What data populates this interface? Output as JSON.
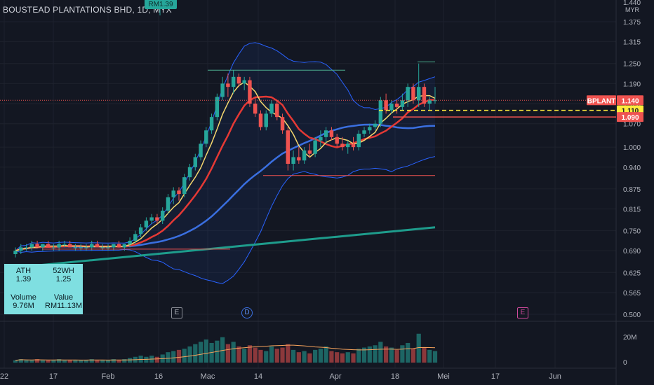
{
  "title": "BOUSTEAD PLANTATIONS BHD, 1D, MYX",
  "ath_tag": "RM1.39",
  "currency": "MYR",
  "price_axis": {
    "top_label": "1.440",
    "ticks": [
      "1.375",
      "1.315",
      "1.250",
      "1.190",
      "1.130",
      "1.070",
      "1.000",
      "0.940",
      "0.875",
      "0.815",
      "0.750",
      "0.690",
      "0.625",
      "0.565",
      "0.500"
    ],
    "tick_values": [
      1.375,
      1.315,
      1.25,
      1.19,
      1.13,
      1.07,
      1.0,
      0.94,
      0.875,
      0.815,
      0.75,
      0.69,
      0.625,
      0.565,
      0.5
    ]
  },
  "price_tags": {
    "symbol": "BPLANT",
    "last": "1.140",
    "mid": "1.110",
    "low": "1.090"
  },
  "volume_axis": {
    "ticks": [
      "20M",
      "0"
    ]
  },
  "time_axis": [
    "22",
    "17",
    "Feb",
    "16",
    "Mac",
    "14",
    "Apr",
    "18",
    "Mei",
    "17",
    "Jun"
  ],
  "events": [
    {
      "label": "E",
      "type": "earnings"
    },
    {
      "label": "D",
      "type": "dividend"
    },
    {
      "label": "E",
      "type": "earnings-upcoming"
    }
  ],
  "info": {
    "ath_label": "ATH",
    "ath_value": "1.39",
    "wh_label": "52WH",
    "wh_value": "1.25",
    "volume_label": "Volume",
    "volume_value": "9.76M",
    "value_label": "Value",
    "value_value": "RM11.13M"
  },
  "colors": {
    "up": "#26a69a",
    "down": "#ef5350",
    "bg": "#131722",
    "info": "#7fdfe1"
  },
  "chart_data": {
    "type": "candlestick",
    "title": "BOUSTEAD PLANTATIONS BHD, 1D, MYX",
    "y_axis": {
      "unit": "MYR",
      "range": [
        0.5,
        1.44
      ]
    },
    "ohlc": [
      [
        0.68,
        0.7,
        0.67,
        0.69
      ],
      [
        0.69,
        0.71,
        0.68,
        0.7
      ],
      [
        0.7,
        0.71,
        0.69,
        0.7
      ],
      [
        0.7,
        0.72,
        0.69,
        0.71
      ],
      [
        0.71,
        0.72,
        0.7,
        0.7
      ],
      [
        0.7,
        0.71,
        0.69,
        0.71
      ],
      [
        0.71,
        0.72,
        0.7,
        0.7
      ],
      [
        0.7,
        0.71,
        0.69,
        0.7
      ],
      [
        0.7,
        0.72,
        0.69,
        0.71
      ],
      [
        0.71,
        0.72,
        0.7,
        0.71
      ],
      [
        0.71,
        0.72,
        0.7,
        0.7
      ],
      [
        0.7,
        0.71,
        0.69,
        0.7
      ],
      [
        0.7,
        0.71,
        0.69,
        0.7
      ],
      [
        0.7,
        0.71,
        0.69,
        0.7
      ],
      [
        0.7,
        0.72,
        0.69,
        0.71
      ],
      [
        0.71,
        0.72,
        0.7,
        0.7
      ],
      [
        0.7,
        0.71,
        0.69,
        0.7
      ],
      [
        0.7,
        0.71,
        0.69,
        0.7
      ],
      [
        0.7,
        0.71,
        0.69,
        0.71
      ],
      [
        0.71,
        0.72,
        0.7,
        0.7
      ],
      [
        0.7,
        0.71,
        0.69,
        0.71
      ],
      [
        0.71,
        0.73,
        0.7,
        0.72
      ],
      [
        0.72,
        0.75,
        0.71,
        0.74
      ],
      [
        0.74,
        0.77,
        0.73,
        0.76
      ],
      [
        0.76,
        0.79,
        0.75,
        0.78
      ],
      [
        0.78,
        0.8,
        0.77,
        0.79
      ],
      [
        0.79,
        0.8,
        0.77,
        0.78
      ],
      [
        0.78,
        0.82,
        0.77,
        0.81
      ],
      [
        0.81,
        0.86,
        0.8,
        0.85
      ],
      [
        0.85,
        0.88,
        0.83,
        0.87
      ],
      [
        0.87,
        0.88,
        0.84,
        0.86
      ],
      [
        0.86,
        0.92,
        0.85,
        0.91
      ],
      [
        0.91,
        0.95,
        0.9,
        0.94
      ],
      [
        0.94,
        0.98,
        0.93,
        0.97
      ],
      [
        0.97,
        1.02,
        0.96,
        1.01
      ],
      [
        1.01,
        1.06,
        1.0,
        1.05
      ],
      [
        1.05,
        1.1,
        1.04,
        1.09
      ],
      [
        1.09,
        1.16,
        1.08,
        1.15
      ],
      [
        1.15,
        1.21,
        1.14,
        1.19
      ],
      [
        1.19,
        1.22,
        1.15,
        1.18
      ],
      [
        1.18,
        1.23,
        1.16,
        1.21
      ],
      [
        1.21,
        1.22,
        1.18,
        1.19
      ],
      [
        1.19,
        1.21,
        1.17,
        1.2
      ],
      [
        1.2,
        1.21,
        1.12,
        1.13
      ],
      [
        1.13,
        1.15,
        1.09,
        1.1
      ],
      [
        1.1,
        1.11,
        1.05,
        1.06
      ],
      [
        1.06,
        1.11,
        1.05,
        1.1
      ],
      [
        1.1,
        1.14,
        1.09,
        1.13
      ],
      [
        1.13,
        1.14,
        1.08,
        1.09
      ],
      [
        1.09,
        1.1,
        1.04,
        1.05
      ],
      [
        1.05,
        1.06,
        0.93,
        0.95
      ],
      [
        0.95,
        0.99,
        0.93,
        0.97
      ],
      [
        0.97,
        1.0,
        0.95,
        0.96
      ],
      [
        0.96,
        1.0,
        0.95,
        0.99
      ],
      [
        0.99,
        1.01,
        0.97,
        0.98
      ],
      [
        0.98,
        1.03,
        0.97,
        1.02
      ],
      [
        1.02,
        1.05,
        1.0,
        1.03
      ],
      [
        1.03,
        1.06,
        1.01,
        1.05
      ],
      [
        1.05,
        1.06,
        1.02,
        1.03
      ],
      [
        1.03,
        1.04,
        1.0,
        1.01
      ],
      [
        1.01,
        1.03,
        0.99,
        1.0
      ],
      [
        1.0,
        1.02,
        0.98,
        1.01
      ],
      [
        1.01,
        1.03,
        0.99,
        1.0
      ],
      [
        1.0,
        1.05,
        0.99,
        1.04
      ],
      [
        1.04,
        1.06,
        1.03,
        1.05
      ],
      [
        1.05,
        1.07,
        1.04,
        1.06
      ],
      [
        1.06,
        1.08,
        1.05,
        1.07
      ],
      [
        1.07,
        1.15,
        1.06,
        1.14
      ],
      [
        1.14,
        1.16,
        1.1,
        1.11
      ],
      [
        1.11,
        1.14,
        1.1,
        1.13
      ],
      [
        1.13,
        1.14,
        1.1,
        1.12
      ],
      [
        1.12,
        1.16,
        1.11,
        1.14
      ],
      [
        1.14,
        1.19,
        1.12,
        1.18
      ],
      [
        1.18,
        1.19,
        1.13,
        1.14
      ],
      [
        1.14,
        1.25,
        1.12,
        1.18
      ],
      [
        1.18,
        1.19,
        1.12,
        1.13
      ],
      [
        1.13,
        1.15,
        1.11,
        1.14
      ],
      [
        1.14,
        1.18,
        1.13,
        1.14
      ]
    ],
    "volume_millions": [
      2,
      3,
      2,
      2,
      3,
      2,
      2,
      2,
      3,
      2,
      2,
      2,
      2,
      2,
      3,
      2,
      2,
      2,
      3,
      2,
      3,
      4,
      5,
      6,
      5,
      6,
      5,
      7,
      9,
      10,
      11,
      12,
      14,
      16,
      18,
      20,
      17,
      19,
      22,
      16,
      18,
      14,
      12,
      15,
      13,
      11,
      10,
      14,
      12,
      13,
      16,
      11,
      9,
      10,
      8,
      11,
      12,
      14,
      10,
      9,
      8,
      9,
      8,
      12,
      13,
      14,
      15,
      18,
      14,
      13,
      11,
      15,
      17,
      12,
      25,
      13,
      11,
      10
    ],
    "series": [
      {
        "name": "",
        "color": "#f5d76e"
      },
      {
        "name": "",
        "color": "#e53935"
      },
      {
        "name": "",
        "color": "#3a6fe0"
      },
      {
        "name": "",
        "color": "#1e9c8c"
      }
    ]
  }
}
